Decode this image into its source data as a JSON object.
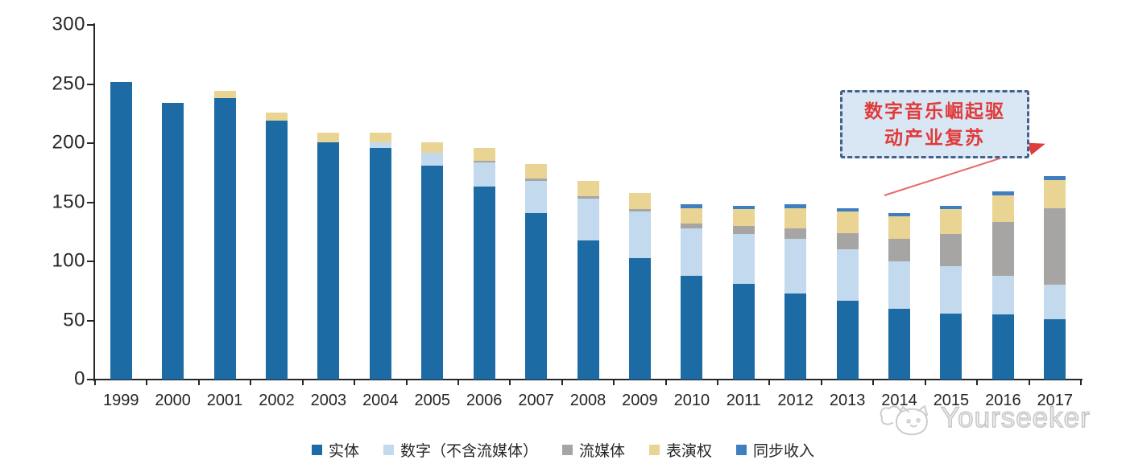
{
  "chart_data": {
    "type": "bar",
    "stacked": true,
    "title": "",
    "xlabel": "",
    "ylabel": "",
    "ylim": [
      0,
      300
    ],
    "y_ticks": [
      300,
      250,
      200,
      150,
      100,
      50,
      0
    ],
    "grid": false,
    "legend_position": "bottom",
    "categories": [
      "1999",
      "2000",
      "2001",
      "2002",
      "2003",
      "2004",
      "2005",
      "2006",
      "2007",
      "2008",
      "2009",
      "2010",
      "2011",
      "2012",
      "2013",
      "2014",
      "2015",
      "2016",
      "2017"
    ],
    "series": [
      {
        "name": "实体",
        "key": "physical",
        "color": "#1c6ba5",
        "values": [
          252,
          234,
          238,
          219,
          201,
          196,
          181,
          163,
          141,
          118,
          103,
          88,
          81,
          73,
          67,
          60,
          56,
          55,
          51
        ]
      },
      {
        "name": "数字（不含流媒体）",
        "key": "digital-excl-streaming",
        "color": "#c3d9ee",
        "values": [
          0,
          0,
          0,
          0,
          0,
          5,
          11,
          21,
          27,
          35,
          39,
          40,
          42,
          46,
          43,
          40,
          40,
          33,
          29
        ]
      },
      {
        "name": "流媒体",
        "key": "streaming",
        "color": "#a6a5a3",
        "values": [
          0,
          0,
          0,
          0,
          0,
          0,
          0,
          1,
          2,
          2,
          2,
          4,
          7,
          9,
          14,
          19,
          27,
          45,
          65
        ]
      },
      {
        "name": "表演权",
        "key": "performance-rights",
        "color": "#e9d493",
        "values": [
          0,
          0,
          6,
          7,
          8,
          8,
          9,
          11,
          12,
          13,
          14,
          13,
          14,
          17,
          18,
          19,
          21,
          23,
          24
        ]
      },
      {
        "name": "同步收入",
        "key": "sync-revenue",
        "color": "#3f7fc1",
        "values": [
          0,
          0,
          0,
          0,
          0,
          0,
          0,
          0,
          0,
          0,
          0,
          3,
          3,
          3,
          3,
          3,
          3,
          3,
          3
        ]
      }
    ]
  },
  "annotation": {
    "line1": "数字音乐崛起驱",
    "line2": "动产业复苏",
    "text_color": "#e03a3a",
    "box_fill": "#d9e6f3",
    "box_border_color": "#44618e",
    "arrow_color": "#e65252"
  },
  "watermark": {
    "brand": "Yourseeker",
    "color": "#c5c5c5"
  }
}
